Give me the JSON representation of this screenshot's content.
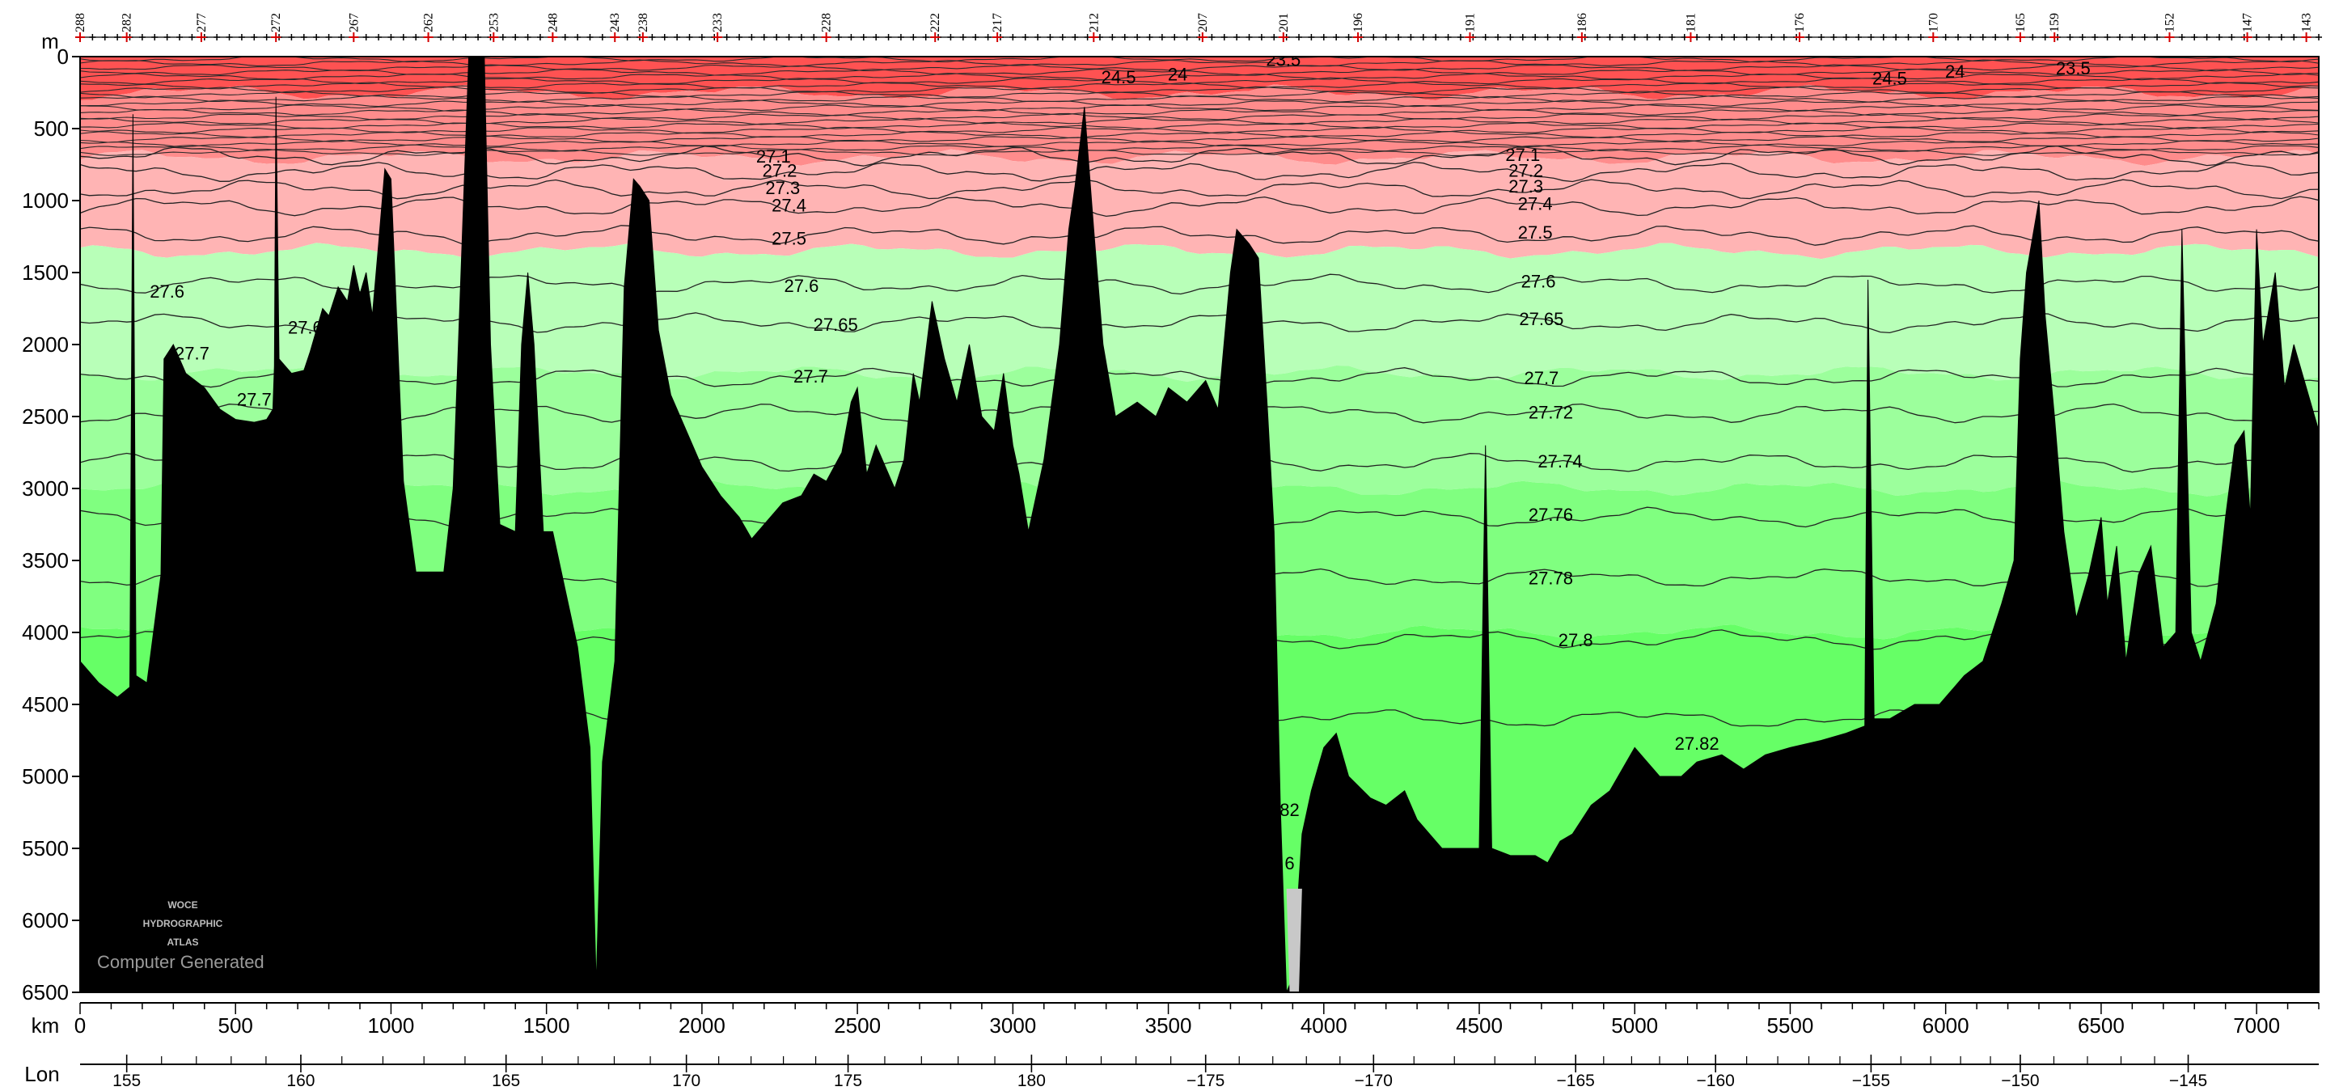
{
  "chart_data": {
    "type": "area",
    "title": "",
    "xlabel": "km",
    "x2label": "Lon",
    "ylabel": "m",
    "xlim": [
      0,
      7200
    ],
    "ylim": [
      6500,
      0
    ],
    "x_ticks": [
      0,
      500,
      1000,
      1500,
      2000,
      2500,
      3000,
      3500,
      4000,
      4500,
      5000,
      5500,
      6000,
      6500,
      7000
    ],
    "y_ticks": [
      0,
      500,
      1000,
      1500,
      2000,
      2500,
      3000,
      3500,
      4000,
      4500,
      5000,
      5500,
      6000,
      6500
    ],
    "lon_ticks": [
      {
        "label": "155",
        "km": 150
      },
      {
        "label": "160",
        "km": 710
      },
      {
        "label": "165",
        "km": 1370
      },
      {
        "label": "170",
        "km": 1950
      },
      {
        "label": "175",
        "km": 2470
      },
      {
        "label": "180",
        "km": 3060
      },
      {
        "label": "−175",
        "km": 3620
      },
      {
        "label": "−170",
        "km": 4160
      },
      {
        "label": "−165",
        "km": 4810
      },
      {
        "label": "−160",
        "km": 5260
      },
      {
        "label": "−155",
        "km": 5760
      },
      {
        "label": "−150",
        "km": 6240
      },
      {
        "label": "−145",
        "km": 6780
      }
    ],
    "stations": [
      {
        "label": "288",
        "km": 0
      },
      {
        "label": "282",
        "km": 150
      },
      {
        "label": "277",
        "km": 390
      },
      {
        "label": "272",
        "km": 630
      },
      {
        "label": "267",
        "km": 880
      },
      {
        "label": "262",
        "km": 1120
      },
      {
        "label": "253",
        "km": 1330
      },
      {
        "label": "248",
        "km": 1520
      },
      {
        "label": "243",
        "km": 1720
      },
      {
        "label": "238",
        "km": 1810
      },
      {
        "label": "233",
        "km": 2050
      },
      {
        "label": "228",
        "km": 2400
      },
      {
        "label": "222",
        "km": 2750
      },
      {
        "label": "217",
        "km": 2950
      },
      {
        "label": "212",
        "km": 3260
      },
      {
        "label": "207",
        "km": 3610
      },
      {
        "label": "201",
        "km": 3870
      },
      {
        "label": "196",
        "km": 4110
      },
      {
        "label": "191",
        "km": 4470
      },
      {
        "label": "186",
        "km": 4830
      },
      {
        "label": "181",
        "km": 5180
      },
      {
        "label": "176",
        "km": 5530
      },
      {
        "label": "170",
        "km": 5960
      },
      {
        "label": "165",
        "km": 6240
      },
      {
        "label": "159",
        "km": 6350
      },
      {
        "label": "152",
        "km": 6720
      },
      {
        "label": "147",
        "km": 6970
      },
      {
        "label": "143",
        "km": 7160
      }
    ],
    "color_bands": [
      {
        "from": 0,
        "to": 250,
        "color": "#ff5252"
      },
      {
        "from": 250,
        "to": 700,
        "color": "#ff8c8c"
      },
      {
        "from": 700,
        "to": 1350,
        "color": "#ffb4b4"
      },
      {
        "from": 1350,
        "to": 2200,
        "color": "#b8ffb8"
      },
      {
        "from": 2200,
        "to": 3000,
        "color": "#9cff9c"
      },
      {
        "from": 3000,
        "to": 4000,
        "color": "#80ff80"
      },
      {
        "from": 4000,
        "to": 6500,
        "color": "#66ff66"
      }
    ],
    "isopycnals": [
      {
        "value": 27.1,
        "depth": 690
      },
      {
        "value": 27.2,
        "depth": 800
      },
      {
        "value": 27.3,
        "depth": 920
      },
      {
        "value": 27.4,
        "depth": 1040
      },
      {
        "value": 27.5,
        "depth": 1240
      },
      {
        "value": 27.6,
        "depth": 1580
      },
      {
        "value": 27.65,
        "depth": 1850
      },
      {
        "value": 27.7,
        "depth": 2230
      },
      {
        "value": 27.72,
        "depth": 2480
      },
      {
        "value": 27.74,
        "depth": 2820
      },
      {
        "value": 27.76,
        "depth": 3200
      },
      {
        "value": 27.78,
        "depth": 3620
      },
      {
        "value": 27.8,
        "depth": 4050
      },
      {
        "value": 27.82,
        "depth": 4600
      }
    ],
    "contour_labels": [
      {
        "text": "23.5",
        "km": 3870,
        "depth": 20
      },
      {
        "text": "24",
        "km": 3530,
        "depth": 120
      },
      {
        "text": "24.5",
        "km": 3340,
        "depth": 140
      },
      {
        "text": "23.5",
        "km": 6410,
        "depth": 80
      },
      {
        "text": "24",
        "km": 6030,
        "depth": 100
      },
      {
        "text": "24.5",
        "km": 5820,
        "depth": 150
      },
      {
        "text": "27.1",
        "km": 2230,
        "depth": 690
      },
      {
        "text": "27.2",
        "km": 2250,
        "depth": 790
      },
      {
        "text": "27.3",
        "km": 2260,
        "depth": 910
      },
      {
        "text": "27.4",
        "km": 2280,
        "depth": 1030
      },
      {
        "text": "27.5",
        "km": 2280,
        "depth": 1260
      },
      {
        "text": "27.6",
        "km": 2320,
        "depth": 1590
      },
      {
        "text": "27.65",
        "km": 2430,
        "depth": 1860
      },
      {
        "text": "27.7",
        "km": 2350,
        "depth": 2220
      },
      {
        "text": "27.1",
        "km": 4640,
        "depth": 680
      },
      {
        "text": "27.2",
        "km": 4650,
        "depth": 790
      },
      {
        "text": "27.3",
        "km": 4650,
        "depth": 900
      },
      {
        "text": "27.4",
        "km": 4680,
        "depth": 1020
      },
      {
        "text": "27.5",
        "km": 4680,
        "depth": 1220
      },
      {
        "text": "27.6",
        "km": 4690,
        "depth": 1560
      },
      {
        "text": "27.65",
        "km": 4700,
        "depth": 1820
      },
      {
        "text": "27.7",
        "km": 4700,
        "depth": 2230
      },
      {
        "text": "27.72",
        "km": 4730,
        "depth": 2470
      },
      {
        "text": "27.74",
        "km": 4760,
        "depth": 2810
      },
      {
        "text": "27.76",
        "km": 4730,
        "depth": 3180
      },
      {
        "text": "27.78",
        "km": 4730,
        "depth": 3620
      },
      {
        "text": "27.8",
        "km": 4810,
        "depth": 4050
      },
      {
        "text": "27.82",
        "km": 5200,
        "depth": 4770
      },
      {
        "text": "27.6",
        "km": 280,
        "depth": 1630
      },
      {
        "text": "27.65",
        "km": 740,
        "depth": 1880
      },
      {
        "text": "27.7",
        "km": 360,
        "depth": 2060
      },
      {
        "text": "27.7",
        "km": 560,
        "depth": 2380
      },
      {
        "text": "82",
        "km": 3890,
        "depth": 5230
      },
      {
        "text": "6",
        "km": 3890,
        "depth": 5600
      }
    ],
    "bottom_profile": [
      [
        0,
        4200
      ],
      [
        60,
        4350
      ],
      [
        120,
        4450
      ],
      [
        160,
        4380
      ],
      [
        170,
        400
      ],
      [
        180,
        4300
      ],
      [
        215,
        4350
      ],
      [
        260,
        3600
      ],
      [
        270,
        2100
      ],
      [
        300,
        2000
      ],
      [
        340,
        2200
      ],
      [
        400,
        2300
      ],
      [
        450,
        2450
      ],
      [
        500,
        2520
      ],
      [
        560,
        2540
      ],
      [
        600,
        2520
      ],
      [
        620,
        2450
      ],
      [
        625,
        2150
      ],
      [
        630,
        280
      ],
      [
        640,
        2100
      ],
      [
        680,
        2200
      ],
      [
        720,
        2180
      ],
      [
        740,
        2050
      ],
      [
        780,
        1750
      ],
      [
        800,
        1800
      ],
      [
        830,
        1600
      ],
      [
        860,
        1700
      ],
      [
        880,
        1450
      ],
      [
        900,
        1650
      ],
      [
        920,
        1500
      ],
      [
        940,
        1800
      ],
      [
        960,
        1300
      ],
      [
        980,
        780
      ],
      [
        1000,
        850
      ],
      [
        1040,
        2950
      ],
      [
        1080,
        3580
      ],
      [
        1170,
        3580
      ],
      [
        1200,
        3000
      ],
      [
        1230,
        1200
      ],
      [
        1250,
        0
      ],
      [
        1300,
        0
      ],
      [
        1320,
        2000
      ],
      [
        1350,
        3250
      ],
      [
        1400,
        3300
      ],
      [
        1420,
        2000
      ],
      [
        1440,
        1500
      ],
      [
        1460,
        2000
      ],
      [
        1490,
        3300
      ],
      [
        1520,
        3300
      ],
      [
        1560,
        3700
      ],
      [
        1600,
        4100
      ],
      [
        1640,
        4800
      ],
      [
        1660,
        6450
      ],
      [
        1680,
        4900
      ],
      [
        1720,
        4200
      ],
      [
        1750,
        1600
      ],
      [
        1780,
        850
      ],
      [
        1800,
        900
      ],
      [
        1830,
        1000
      ],
      [
        1860,
        1900
      ],
      [
        1900,
        2350
      ],
      [
        1960,
        2650
      ],
      [
        2000,
        2850
      ],
      [
        2060,
        3050
      ],
      [
        2120,
        3200
      ],
      [
        2160,
        3350
      ],
      [
        2200,
        3250
      ],
      [
        2260,
        3100
      ],
      [
        2320,
        3050
      ],
      [
        2360,
        2900
      ],
      [
        2400,
        2950
      ],
      [
        2450,
        2750
      ],
      [
        2480,
        2400
      ],
      [
        2500,
        2300
      ],
      [
        2530,
        2900
      ],
      [
        2560,
        2700
      ],
      [
        2620,
        3000
      ],
      [
        2650,
        2800
      ],
      [
        2680,
        2200
      ],
      [
        2700,
        2400
      ],
      [
        2740,
        1700
      ],
      [
        2780,
        2100
      ],
      [
        2820,
        2400
      ],
      [
        2860,
        2000
      ],
      [
        2900,
        2500
      ],
      [
        2940,
        2600
      ],
      [
        2970,
        2200
      ],
      [
        3000,
        2700
      ],
      [
        3020,
        2900
      ],
      [
        3050,
        3300
      ],
      [
        3100,
        2800
      ],
      [
        3150,
        2000
      ],
      [
        3180,
        1200
      ],
      [
        3200,
        900
      ],
      [
        3230,
        350
      ],
      [
        3260,
        1200
      ],
      [
        3290,
        2000
      ],
      [
        3330,
        2500
      ],
      [
        3400,
        2400
      ],
      [
        3460,
        2500
      ],
      [
        3500,
        2300
      ],
      [
        3560,
        2400
      ],
      [
        3620,
        2250
      ],
      [
        3660,
        2450
      ],
      [
        3700,
        1500
      ],
      [
        3720,
        1200
      ],
      [
        3760,
        1300
      ],
      [
        3790,
        1400
      ],
      [
        3820,
        2500
      ],
      [
        3840,
        3300
      ],
      [
        3860,
        5200
      ],
      [
        3880,
        6500
      ],
      [
        3900,
        6400
      ],
      [
        3930,
        5400
      ],
      [
        3960,
        5100
      ],
      [
        4000,
        4800
      ],
      [
        4040,
        4700
      ],
      [
        4080,
        5000
      ],
      [
        4150,
        5150
      ],
      [
        4200,
        5200
      ],
      [
        4260,
        5100
      ],
      [
        4300,
        5300
      ],
      [
        4380,
        5500
      ],
      [
        4450,
        5500
      ],
      [
        4500,
        5500
      ],
      [
        4520,
        2700
      ],
      [
        4540,
        5500
      ],
      [
        4600,
        5550
      ],
      [
        4680,
        5550
      ],
      [
        4720,
        5600
      ],
      [
        4760,
        5450
      ],
      [
        4800,
        5400
      ],
      [
        4860,
        5200
      ],
      [
        4920,
        5100
      ],
      [
        5000,
        4800
      ],
      [
        5080,
        5000
      ],
      [
        5150,
        5000
      ],
      [
        5200,
        4900
      ],
      [
        5280,
        4850
      ],
      [
        5350,
        4950
      ],
      [
        5420,
        4850
      ],
      [
        5500,
        4800
      ],
      [
        5600,
        4750
      ],
      [
        5680,
        4700
      ],
      [
        5740,
        4650
      ],
      [
        5750,
        1550
      ],
      [
        5770,
        4600
      ],
      [
        5820,
        4600
      ],
      [
        5900,
        4500
      ],
      [
        5980,
        4500
      ],
      [
        6060,
        4300
      ],
      [
        6120,
        4200
      ],
      [
        6180,
        3800
      ],
      [
        6220,
        3500
      ],
      [
        6240,
        2100
      ],
      [
        6260,
        1500
      ],
      [
        6300,
        1000
      ],
      [
        6320,
        1800
      ],
      [
        6350,
        2500
      ],
      [
        6380,
        3300
      ],
      [
        6420,
        3900
      ],
      [
        6460,
        3600
      ],
      [
        6500,
        3200
      ],
      [
        6520,
        3800
      ],
      [
        6550,
        3400
      ],
      [
        6580,
        4200
      ],
      [
        6620,
        3600
      ],
      [
        6660,
        3400
      ],
      [
        6700,
        4100
      ],
      [
        6740,
        4000
      ],
      [
        6760,
        1200
      ],
      [
        6790,
        4000
      ],
      [
        6820,
        4200
      ],
      [
        6870,
        3800
      ],
      [
        6900,
        3200
      ],
      [
        6930,
        2700
      ],
      [
        6960,
        2600
      ],
      [
        6980,
        3200
      ],
      [
        7000,
        1200
      ],
      [
        7020,
        2000
      ],
      [
        7060,
        1500
      ],
      [
        7090,
        2300
      ],
      [
        7120,
        2000
      ],
      [
        7160,
        2300
      ],
      [
        7200,
        2600
      ]
    ],
    "watermark": {
      "logo_lines": [
        "WOCE",
        "HYDROGRAPHIC",
        "ATLAS"
      ],
      "text": "Computer Generated"
    }
  }
}
